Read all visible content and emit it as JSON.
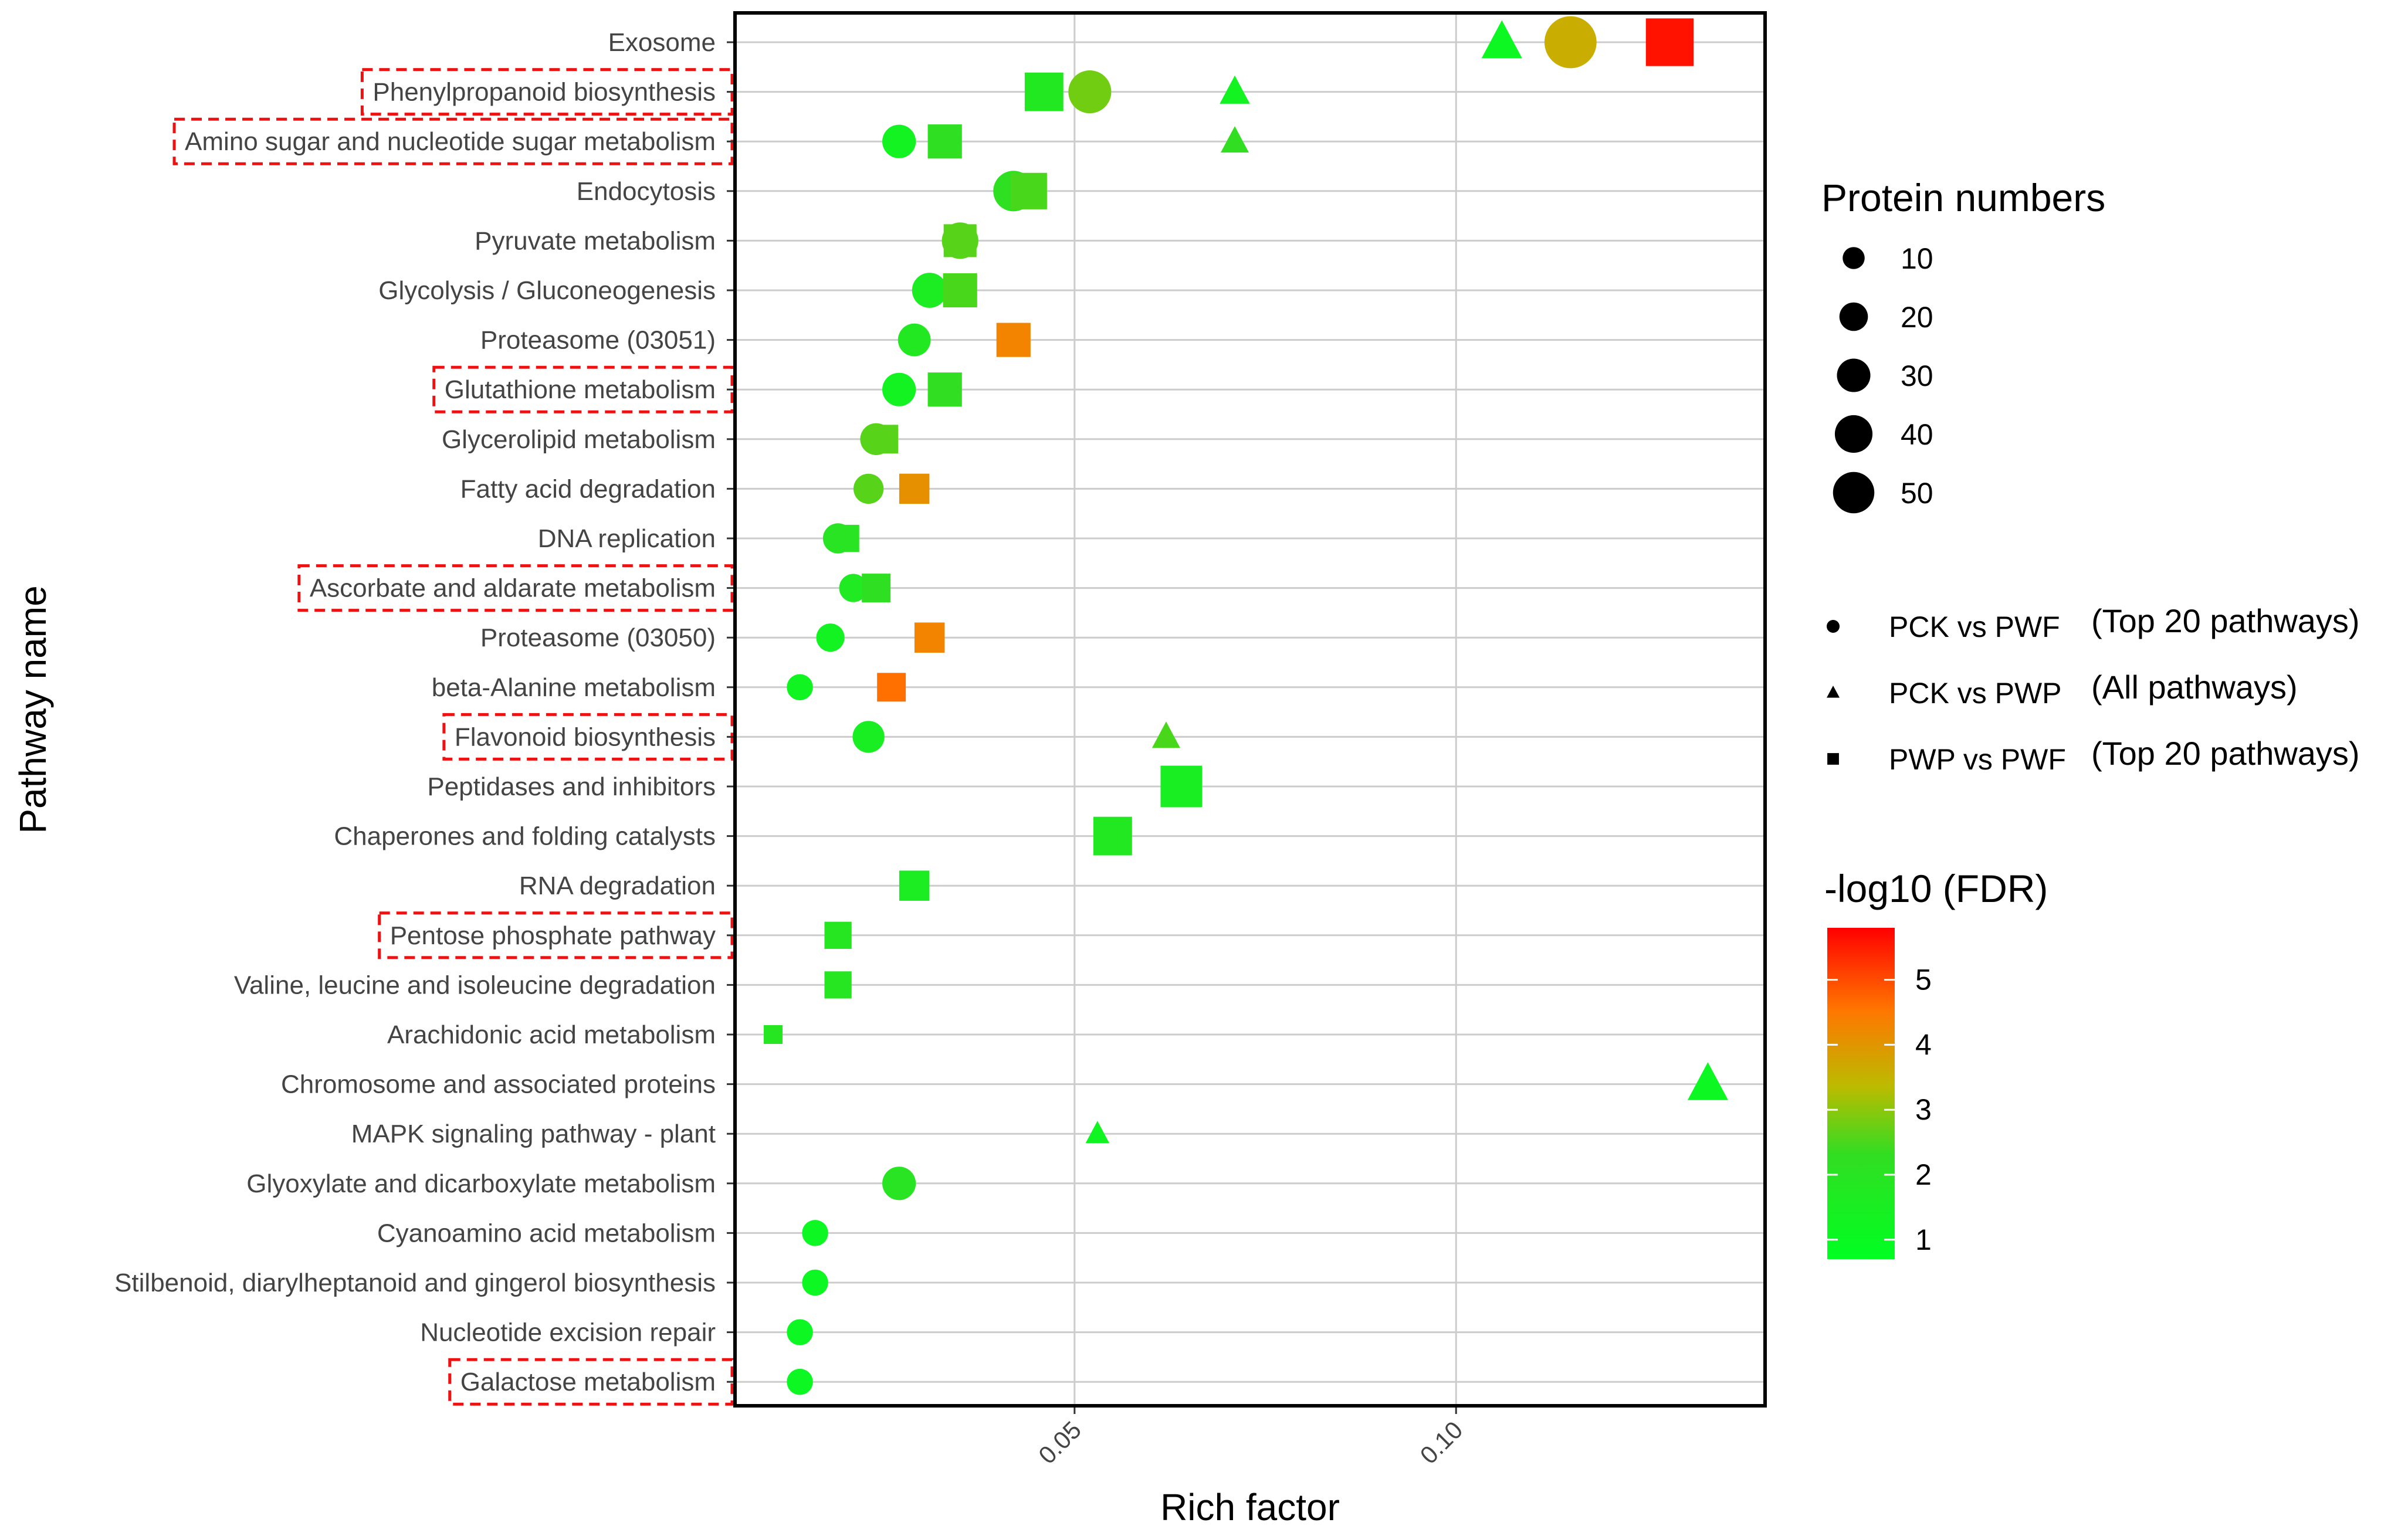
{
  "chart_data": {
    "type": "scatter",
    "xlabel": "Rich factor",
    "ylabel": "Pathway name",
    "xlim": [
      0.0055,
      0.1405
    ],
    "xticks": [
      0.05,
      0.1
    ],
    "xtick_labels": [
      "0.05",
      "0.10"
    ],
    "grid": true,
    "categories": [
      "Exosome",
      "Phenylpropanoid biosynthesis",
      "Amino sugar and nucleotide sugar metabolism",
      "Endocytosis",
      "Pyruvate metabolism",
      "Glycolysis / Gluconeogenesis",
      "Proteasome (03051)",
      "Glutathione metabolism",
      "Glycerolipid metabolism",
      "Fatty acid degradation",
      "DNA replication",
      "Ascorbate and aldarate metabolism",
      "Proteasome (03050)",
      "beta-Alanine metabolism",
      "Flavonoid biosynthesis",
      "Peptidases and inhibitors",
      "Chaperones and folding catalysts",
      "RNA degradation",
      "Pentose phosphate pathway",
      "Valine, leucine and isoleucine degradation",
      "Arachidonic acid metabolism",
      "Chromosome and associated proteins",
      "MAPK signaling pathway - plant",
      "Glyoxylate and dicarboxylate metabolism",
      "Cyanoamino acid metabolism",
      "Stilbenoid, diarylheptanoid and gingerol biosynthesis",
      "Nucleotide excision repair",
      "Galactose metabolism"
    ],
    "highlighted": [
      "Phenylpropanoid biosynthesis",
      "Amino sugar and nucleotide sugar metabolism",
      "Glutathione metabolism",
      "Ascorbate and aldarate metabolism",
      "Flavonoid biosynthesis",
      "Pentose phosphate pathway",
      "Galactose metabolism"
    ],
    "series": [
      {
        "name": "PCK vs PWF",
        "shape": "circle",
        "points": [
          {
            "pathway": "Exosome",
            "rich_factor": 0.115,
            "proteins": 48,
            "neglog10_fdr": 3.6
          },
          {
            "pathway": "Phenylpropanoid biosynthesis",
            "rich_factor": 0.052,
            "proteins": 30,
            "neglog10_fdr": 2.8
          },
          {
            "pathway": "Amino sugar and nucleotide sugar metabolism",
            "rich_factor": 0.027,
            "proteins": 16,
            "neglog10_fdr": 1.3
          },
          {
            "pathway": "Endocytosis",
            "rich_factor": 0.042,
            "proteins": 26,
            "neglog10_fdr": 2.2
          },
          {
            "pathway": "Pyruvate metabolism",
            "rich_factor": 0.035,
            "proteins": 20,
            "neglog10_fdr": 2.6
          },
          {
            "pathway": "Glycolysis / Gluconeogenesis",
            "rich_factor": 0.031,
            "proteins": 18,
            "neglog10_fdr": 1.6
          },
          {
            "pathway": "Proteasome (03051)",
            "rich_factor": 0.029,
            "proteins": 15,
            "neglog10_fdr": 1.8
          },
          {
            "pathway": "Glutathione metabolism",
            "rich_factor": 0.027,
            "proteins": 16,
            "neglog10_fdr": 1.3
          },
          {
            "pathway": "Glycerolipid metabolism",
            "rich_factor": 0.024,
            "proteins": 14,
            "neglog10_fdr": 2.6
          },
          {
            "pathway": "Fatty acid degradation",
            "rich_factor": 0.023,
            "proteins": 12,
            "neglog10_fdr": 2.6
          },
          {
            "pathway": "DNA replication",
            "rich_factor": 0.019,
            "proteins": 12,
            "neglog10_fdr": 2.0
          },
          {
            "pathway": "Ascorbate and aldarate metabolism",
            "rich_factor": 0.021,
            "proteins": 10,
            "neglog10_fdr": 1.7
          },
          {
            "pathway": "Proteasome (03050)",
            "rich_factor": 0.018,
            "proteins": 10,
            "neglog10_fdr": 1.3
          },
          {
            "pathway": "beta-Alanine metabolism",
            "rich_factor": 0.014,
            "proteins": 8,
            "neglog10_fdr": 1.2
          },
          {
            "pathway": "Flavonoid biosynthesis",
            "rich_factor": 0.023,
            "proteins": 14,
            "neglog10_fdr": 1.5
          },
          {
            "pathway": "Glyoxylate and dicarboxylate metabolism",
            "rich_factor": 0.027,
            "proteins": 16,
            "neglog10_fdr": 2.0
          },
          {
            "pathway": "Cyanoamino acid metabolism",
            "rich_factor": 0.016,
            "proteins": 8,
            "neglog10_fdr": 1.1
          },
          {
            "pathway": "Stilbenoid, diarylheptanoid and gingerol biosynthesis",
            "rich_factor": 0.016,
            "proteins": 8,
            "neglog10_fdr": 1.1
          },
          {
            "pathway": "Nucleotide excision repair",
            "rich_factor": 0.014,
            "proteins": 8,
            "neglog10_fdr": 1.1
          },
          {
            "pathway": "Galactose metabolism",
            "rich_factor": 0.014,
            "proteins": 8,
            "neglog10_fdr": 1.1
          }
        ]
      },
      {
        "name": "PCK vs PWP",
        "shape": "triangle",
        "points": [
          {
            "pathway": "Exosome",
            "rich_factor": 0.106,
            "proteins": 26,
            "neglog10_fdr": 1.1
          },
          {
            "pathway": "Phenylpropanoid biosynthesis",
            "rich_factor": 0.071,
            "proteins": 12,
            "neglog10_fdr": 1.3
          },
          {
            "pathway": "Amino sugar and nucleotide sugar metabolism",
            "rich_factor": 0.071,
            "proteins": 10,
            "neglog10_fdr": 2.3
          },
          {
            "pathway": "Flavonoid biosynthesis",
            "rich_factor": 0.062,
            "proteins": 10,
            "neglog10_fdr": 2.5
          },
          {
            "pathway": "Chromosome and associated proteins",
            "rich_factor": 0.133,
            "proteins": 26,
            "neglog10_fdr": 1.1
          },
          {
            "pathway": "MAPK signaling pathway - plant",
            "rich_factor": 0.053,
            "proteins": 6,
            "neglog10_fdr": 1.2
          }
        ]
      },
      {
        "name": "PWP vs PWF",
        "shape": "square",
        "points": [
          {
            "pathway": "Exosome",
            "rich_factor": 0.128,
            "proteins": 50,
            "neglog10_fdr": 5.6
          },
          {
            "pathway": "Phenylpropanoid biosynthesis",
            "rich_factor": 0.046,
            "proteins": 30,
            "neglog10_fdr": 1.8
          },
          {
            "pathway": "Amino sugar and nucleotide sugar metabolism",
            "rich_factor": 0.033,
            "proteins": 22,
            "neglog10_fdr": 2.2
          },
          {
            "pathway": "Endocytosis",
            "rich_factor": 0.044,
            "proteins": 26,
            "neglog10_fdr": 2.5
          },
          {
            "pathway": "Pyruvate metabolism",
            "rich_factor": 0.035,
            "proteins": 20,
            "neglog10_fdr": 2.6
          },
          {
            "pathway": "Glycolysis / Gluconeogenesis",
            "rich_factor": 0.035,
            "proteins": 22,
            "neglog10_fdr": 2.5
          },
          {
            "pathway": "Proteasome (03051)",
            "rich_factor": 0.042,
            "proteins": 22,
            "neglog10_fdr": 4.3
          },
          {
            "pathway": "Glutathione metabolism",
            "rich_factor": 0.033,
            "proteins": 22,
            "neglog10_fdr": 2.3
          },
          {
            "pathway": "Glycerolipid metabolism",
            "rich_factor": 0.025,
            "proteins": 14,
            "neglog10_fdr": 2.6
          },
          {
            "pathway": "Fatty acid degradation",
            "rich_factor": 0.029,
            "proteins": 16,
            "neglog10_fdr": 4.1
          },
          {
            "pathway": "DNA replication",
            "rich_factor": 0.02,
            "proteins": 12,
            "neglog10_fdr": 2.0
          },
          {
            "pathway": "Ascorbate and aldarate metabolism",
            "rich_factor": 0.024,
            "proteins": 14,
            "neglog10_fdr": 2.2
          },
          {
            "pathway": "Proteasome (03050)",
            "rich_factor": 0.031,
            "proteins": 16,
            "neglog10_fdr": 4.3
          },
          {
            "pathway": "beta-Alanine metabolism",
            "rich_factor": 0.026,
            "proteins": 14,
            "neglog10_fdr": 4.6
          },
          {
            "pathway": "Peptidases and inhibitors",
            "rich_factor": 0.064,
            "proteins": 36,
            "neglog10_fdr": 1.5
          },
          {
            "pathway": "Chaperones and folding catalysts",
            "rich_factor": 0.055,
            "proteins": 30,
            "neglog10_fdr": 1.8
          },
          {
            "pathway": "RNA degradation",
            "rich_factor": 0.029,
            "proteins": 16,
            "neglog10_fdr": 1.6
          },
          {
            "pathway": "Pentose phosphate pathway",
            "rich_factor": 0.019,
            "proteins": 12,
            "neglog10_fdr": 1.9
          },
          {
            "pathway": "Valine, leucine and isoleucine degradation",
            "rich_factor": 0.019,
            "proteins": 12,
            "neglog10_fdr": 1.9
          },
          {
            "pathway": "Arachidonic acid metabolism",
            "rich_factor": 0.0105,
            "proteins": 4,
            "neglog10_fdr": 1.9
          }
        ]
      }
    ],
    "legend": {
      "size_title": "Protein numbers",
      "size_levels": [
        10,
        20,
        30,
        40,
        50
      ],
      "shape_entries": [
        {
          "shape": "circle",
          "label": "PCK vs PWF",
          "note": "(Top 20 pathways)"
        },
        {
          "shape": "triangle",
          "label": "PCK vs PWP",
          "note": "(All pathways)"
        },
        {
          "shape": "square",
          "label": "PWP vs PWF",
          "note": "(Top 20 pathways)"
        }
      ],
      "color_title": "-log10 (FDR)",
      "color_range": [
        0.7,
        5.8
      ],
      "color_ticks": [
        1,
        2,
        3,
        4,
        5
      ],
      "colors": {
        "low": "#00ff22",
        "mid_low": "#33dd22",
        "mid": "#bbbb00",
        "mid_high": "#ff7700",
        "high": "#ff0000"
      }
    },
    "colors": {
      "highlight_box": "#ee1111",
      "grid": "#cccccc",
      "panel_border": "#000000"
    }
  }
}
